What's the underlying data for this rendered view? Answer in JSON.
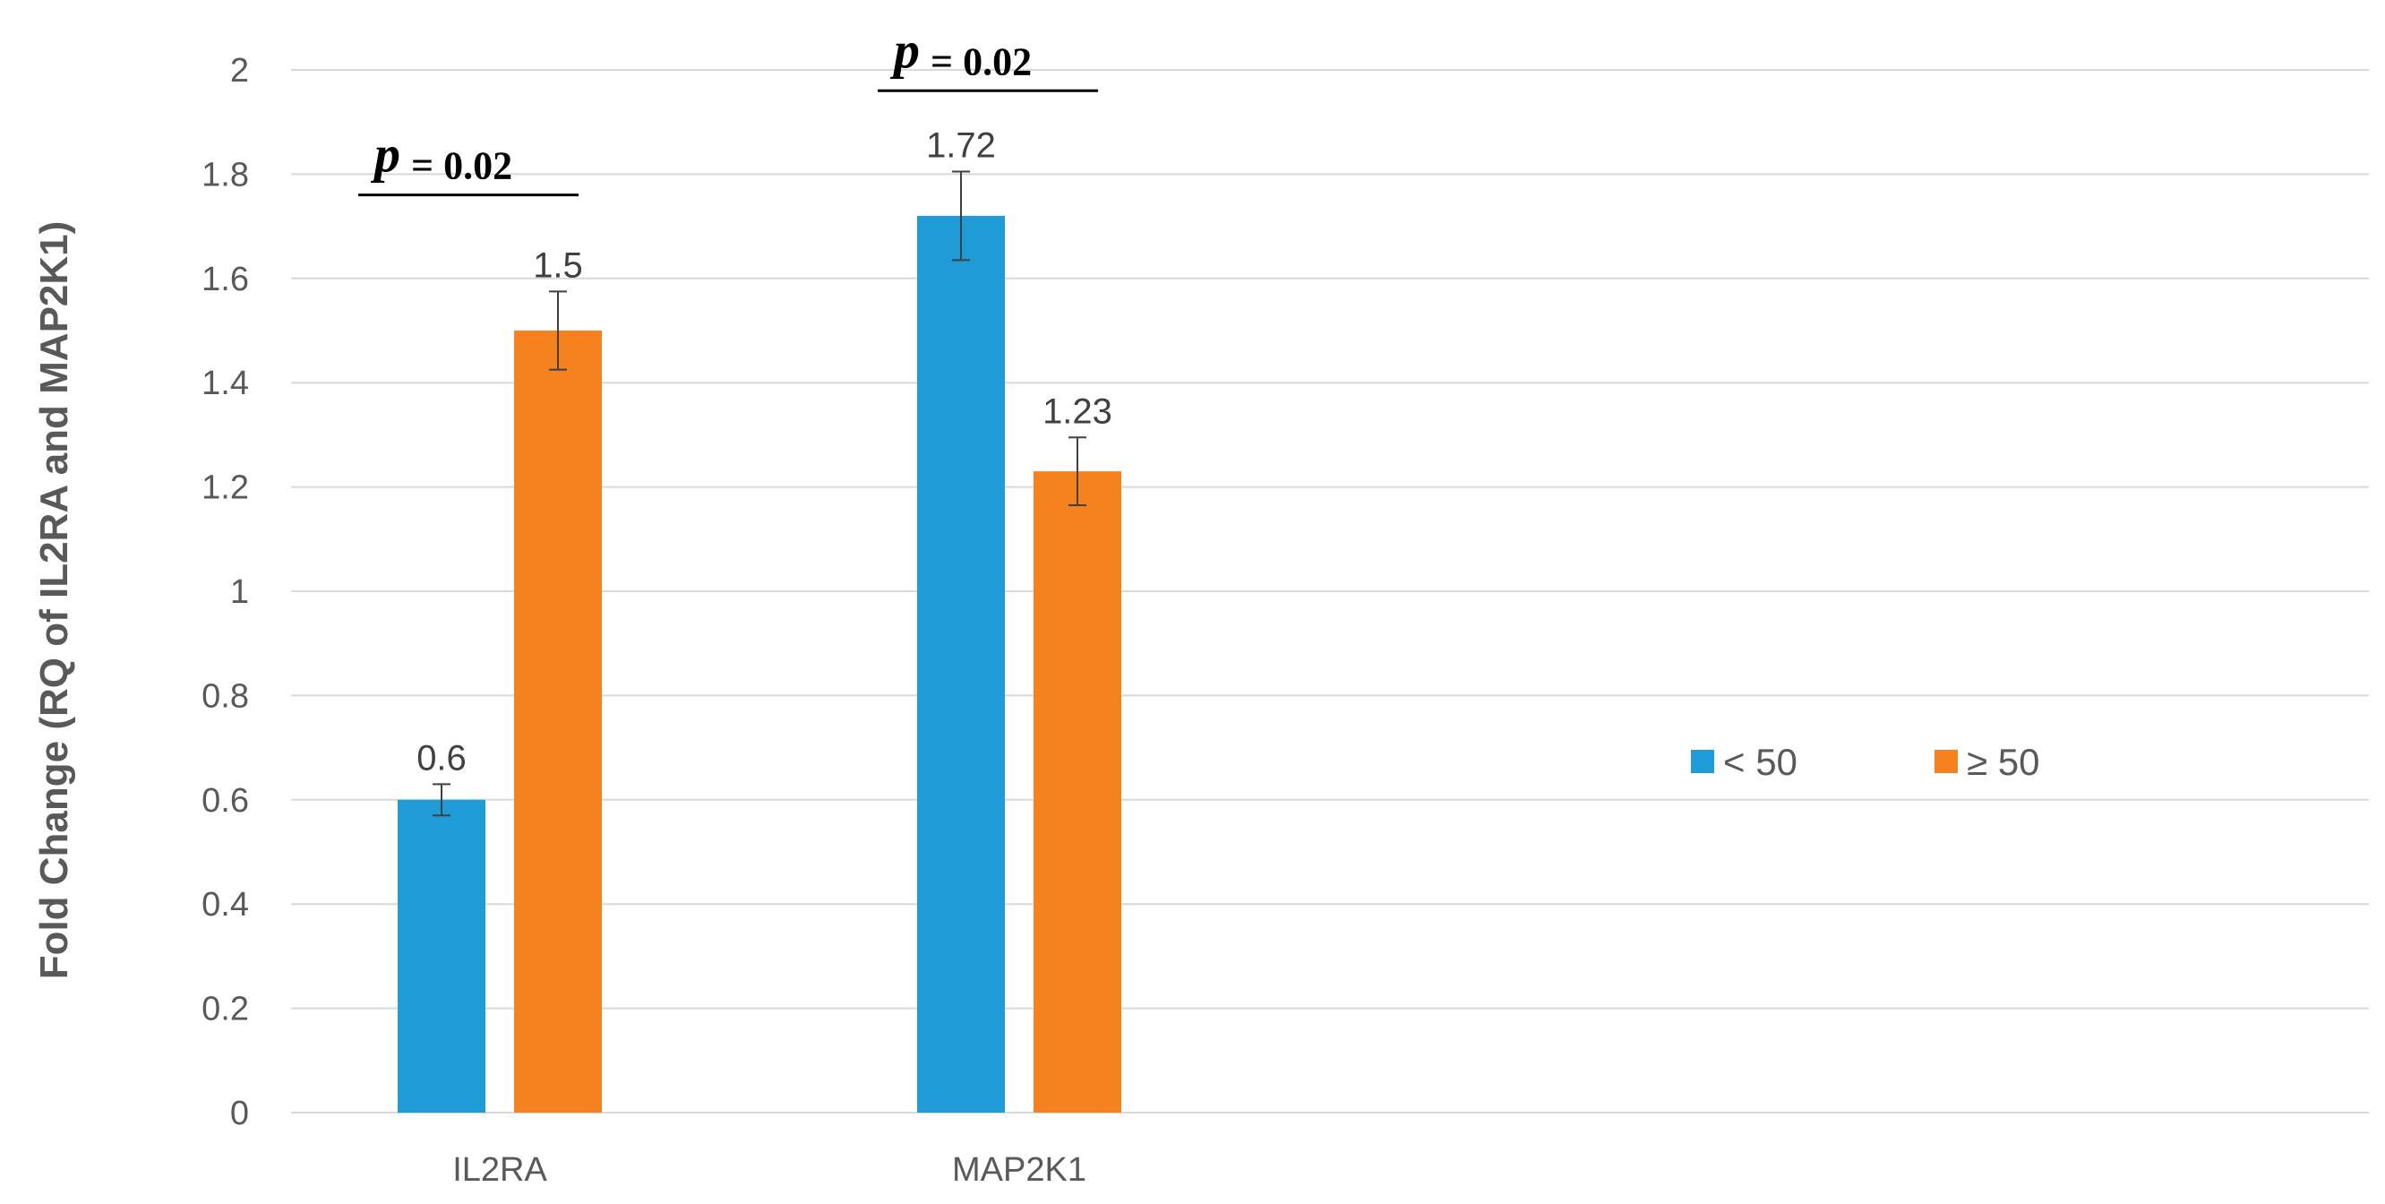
{
  "chart_data": {
    "type": "bar",
    "title": "",
    "xlabel": "",
    "ylabel": "Fold Change (RQ of IL2RA and MAP2K1)",
    "ylim": [
      0,
      2
    ],
    "yticks": [
      "0",
      "0.2",
      "0.4",
      "0.6",
      "0.8",
      "1",
      "1.2",
      "1.4",
      "1.6",
      "1.8",
      "2"
    ],
    "categories": [
      "IL2RA",
      "MAP2K1"
    ],
    "series": [
      {
        "name": "< 50",
        "color": "#1F9BD7",
        "values": [
          0.6,
          1.72
        ],
        "labels": [
          "0.6",
          "1.72"
        ],
        "error": [
          0.03,
          0.085
        ]
      },
      {
        "name": "≥ 50",
        "color": "#F5821F",
        "values": [
          1.5,
          1.23
        ],
        "labels": [
          "1.5",
          "1.23"
        ],
        "error": [
          0.075,
          0.065
        ]
      }
    ],
    "grid": true,
    "legend_position": "right",
    "annotations": [
      {
        "category": "IL2RA",
        "p_symbol": "p",
        "p_text": "= 0.02",
        "y": 1.76
      },
      {
        "category": "MAP2K1",
        "p_symbol": "p",
        "p_text": "= 0.02",
        "y": 1.96
      }
    ]
  },
  "colors": {
    "grid": "#D9D9D9",
    "axis_text": "#595959",
    "error_bar": "#404040"
  }
}
